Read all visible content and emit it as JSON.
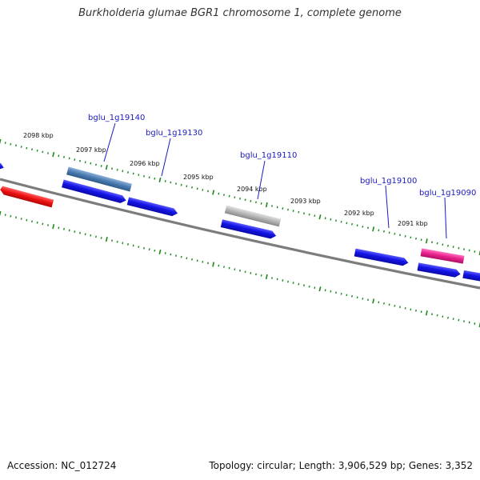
{
  "title": "Burkholderia glumae BGR1 chromosome 1, complete genome",
  "footer": {
    "accession_label": "Accession:",
    "accession": "NC_012724",
    "topology_label": "Topology:",
    "topology": "circular",
    "length_label": "Length:",
    "length": "3,906,529 bp",
    "genes_label": "Genes:",
    "genes": "3,352"
  },
  "ruler": {
    "unit": "kbp",
    "ticks": [
      "2098 kbp",
      "2097 kbp",
      "2096 kbp",
      "2095 kbp",
      "2094 kbp",
      "2093 kbp",
      "2092 kbp",
      "2091 kbp"
    ]
  },
  "gene_labels": [
    "bglu_1g19140",
    "bglu_1g19130",
    "bglu_1g19110",
    "bglu_1g19100",
    "bglu_1g19090"
  ],
  "colors": {
    "cds": "#1010e0",
    "highlight_steelblue": "#4a7ab0",
    "highlight_gray": "#b0b0b0",
    "highlight_pink": "#e8208a",
    "highlight_red": "#e81010",
    "backbone": "#808080",
    "tick": "#1a8a1a",
    "label": "#1a1ac0"
  }
}
